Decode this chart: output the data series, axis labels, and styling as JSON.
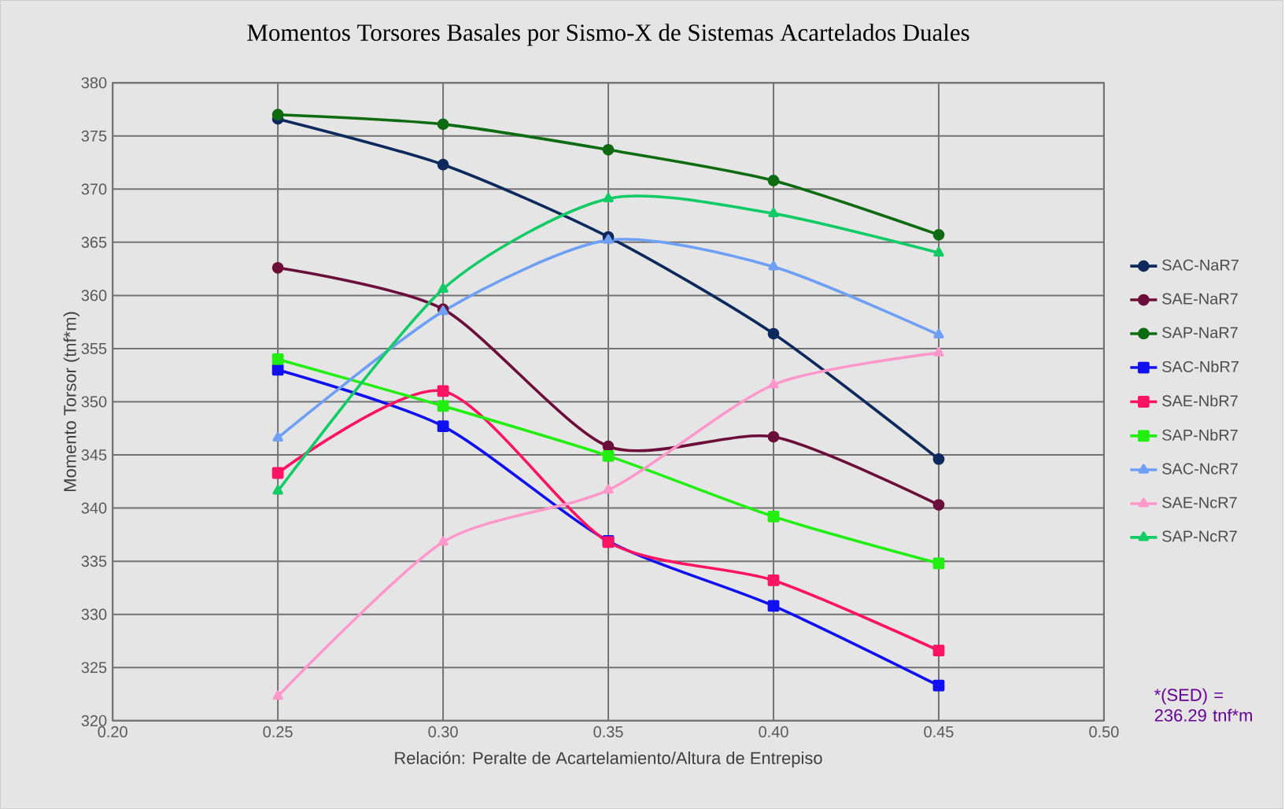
{
  "chart_data": {
    "type": "line",
    "title": "Momentos Torsores Basales por Sismo-X de Sistemas Acartelados Duales",
    "xlabel": "Relación: Peralte de Acartelamiento/Altura de Entrepiso",
    "ylabel": "Momento Torsor (tnf*m)",
    "x": [
      0.25,
      0.3,
      0.35,
      0.4,
      0.45
    ],
    "xlim": [
      0.2,
      0.5
    ],
    "xticks": [
      {
        "value": 0.2,
        "label": "0.20"
      },
      {
        "value": 0.25,
        "label": "0.25"
      },
      {
        "value": 0.3,
        "label": "0.30"
      },
      {
        "value": 0.35,
        "label": "0.35"
      },
      {
        "value": 0.4,
        "label": "0.40"
      },
      {
        "value": 0.45,
        "label": "0.45"
      },
      {
        "value": 0.5,
        "label": "0.50"
      }
    ],
    "ylim": [
      320,
      380
    ],
    "yticks": [
      320,
      325,
      330,
      335,
      340,
      345,
      350,
      355,
      360,
      365,
      370,
      375,
      380
    ],
    "grid": true,
    "legend": "right",
    "line_style": "solid",
    "series": [
      {
        "name": "SAC-NaR7",
        "color": "#0e2a5c",
        "marker": "circle",
        "values": [
          376.6,
          372.3,
          365.5,
          356.4,
          344.6
        ]
      },
      {
        "name": "SAE-NaR7",
        "color": "#6b0f3a",
        "marker": "circle",
        "values": [
          362.6,
          358.7,
          345.8,
          346.7,
          340.3
        ]
      },
      {
        "name": "SAP-NaR7",
        "color": "#0f6b12",
        "marker": "circle",
        "values": [
          377.0,
          376.1,
          373.7,
          370.8,
          365.7
        ]
      },
      {
        "name": "SAC-NbR7",
        "color": "#1010f0",
        "marker": "square",
        "values": [
          353.0,
          347.7,
          336.9,
          330.8,
          323.3
        ]
      },
      {
        "name": "SAE-NbR7",
        "color": "#ff1464",
        "marker": "square",
        "values": [
          343.3,
          351.0,
          336.8,
          333.2,
          326.6
        ]
      },
      {
        "name": "SAP-NbR7",
        "color": "#22ee11",
        "marker": "square",
        "values": [
          354.0,
          349.6,
          344.9,
          339.2,
          334.8
        ]
      },
      {
        "name": "SAC-NcR7",
        "color": "#6fa0f5",
        "marker": "triangle",
        "values": [
          346.6,
          358.5,
          365.2,
          362.7,
          356.3
        ]
      },
      {
        "name": "SAE-NcR7",
        "color": "#ff99cc",
        "marker": "triangle",
        "values": [
          322.3,
          336.8,
          341.7,
          351.6,
          354.6
        ]
      },
      {
        "name": "SAP-NcR7",
        "color": "#11cc66",
        "marker": "triangle",
        "values": [
          341.6,
          360.6,
          369.1,
          367.7,
          364.0
        ]
      }
    ],
    "annotations": [
      "*(SED) = 236.29 tnf*m"
    ]
  }
}
